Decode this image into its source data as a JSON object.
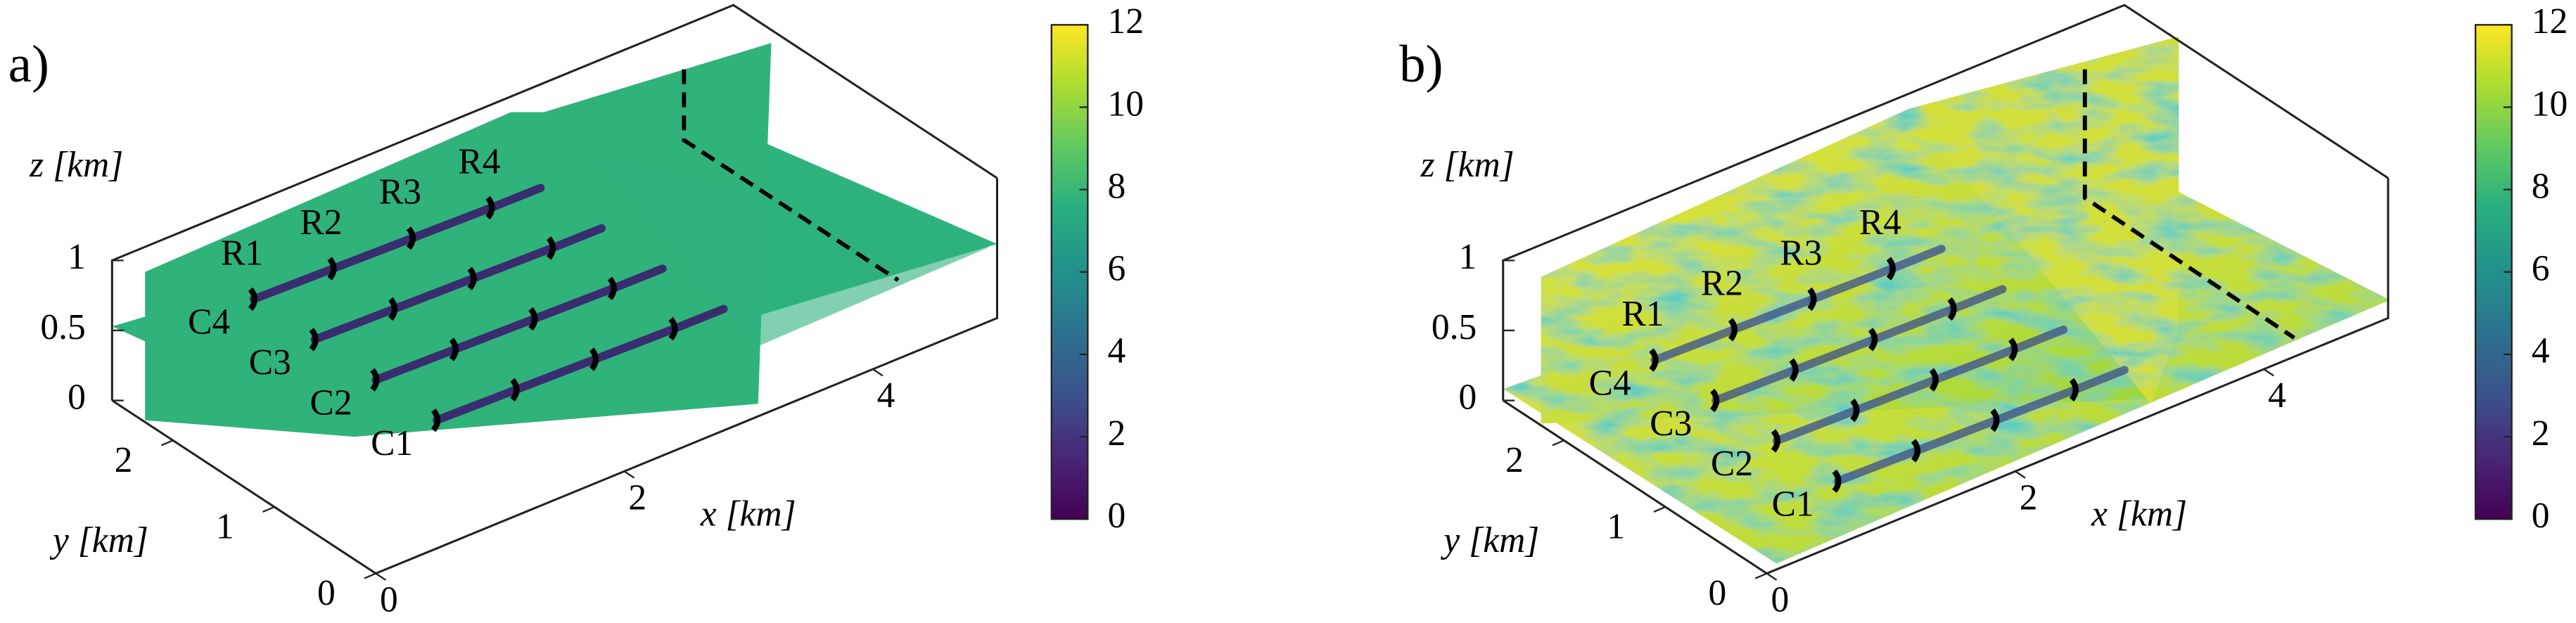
{
  "chart_data": [
    {
      "type": "slices3d",
      "panel_label": "a)",
      "xlabel": "x [km]",
      "ylabel": "y [km]",
      "zlabel": "z [km]",
      "xlim": [
        0,
        5
      ],
      "ylim": [
        0,
        2.6
      ],
      "zlim": [
        0,
        1
      ],
      "xticks": [
        0,
        2,
        4
      ],
      "yticks": [
        0,
        1,
        2
      ],
      "zticks": [
        0,
        0.5,
        1
      ],
      "clim": [
        0,
        12
      ],
      "cticks": [
        0,
        2,
        4,
        6,
        8,
        10,
        12
      ],
      "row_labels": [
        "R1",
        "R2",
        "R3",
        "R4"
      ],
      "column_labels": [
        "C1",
        "C2",
        "C3",
        "C4"
      ]
    },
    {
      "type": "slices3d",
      "panel_label": "b)",
      "xlabel": "x [km]",
      "ylabel": "y [km]",
      "zlabel": "z [km]",
      "xlim": [
        0,
        5
      ],
      "ylim": [
        0,
        2.6
      ],
      "zlim": [
        0,
        1
      ],
      "xticks": [
        0,
        2,
        4
      ],
      "yticks": [
        0,
        1,
        2
      ],
      "zticks": [
        0,
        0.5,
        1
      ],
      "clim": [
        0,
        12
      ],
      "cticks": [
        0,
        2,
        4,
        6,
        8,
        10,
        12
      ],
      "row_labels": [
        "R1",
        "R2",
        "R3",
        "R4"
      ],
      "column_labels": [
        "C1",
        "C2",
        "C3",
        "C4"
      ]
    }
  ]
}
